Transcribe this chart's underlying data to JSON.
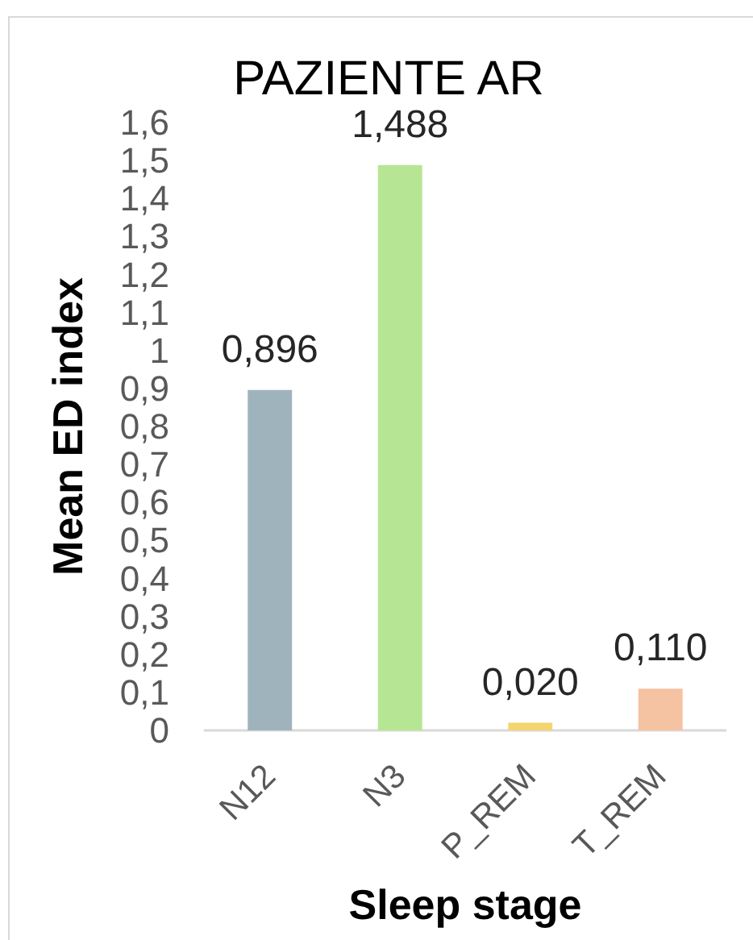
{
  "chart_data": {
    "type": "bar",
    "title": "PAZIENTE AR",
    "xlabel": "Sleep stage",
    "ylabel": "Mean ED index",
    "categories": [
      "N12",
      "N3",
      "P_REM",
      "T_REM"
    ],
    "values": [
      0.896,
      1.488,
      0.02,
      0.11
    ],
    "colors": [
      "#9fb3bd",
      "#b6e693",
      "#f2d56f",
      "#f5c2a2"
    ],
    "value_labels": [
      "0,896",
      "1,488",
      "0,020",
      "0,110"
    ],
    "ylim": [
      0,
      1.6
    ],
    "yticks": [
      0,
      {
        "value": 0.1,
        "label": "0,1"
      },
      {
        "value": 0.2,
        "label": "0,2"
      },
      {
        "value": 0.3,
        "label": "0,3"
      },
      {
        "value": 0.4,
        "label": "0,4"
      },
      {
        "value": 0.5,
        "label": "0,5"
      },
      {
        "value": 0.6,
        "label": "0,6"
      },
      {
        "value": 0.7,
        "label": "0,7"
      },
      {
        "value": 0.8,
        "label": "0,8"
      },
      {
        "value": 0.9,
        "label": "0,9"
      },
      1,
      {
        "value": 1.1,
        "label": "1,1"
      },
      {
        "value": 1.2,
        "label": "1,2"
      },
      {
        "value": 1.3,
        "label": "1,3"
      },
      {
        "value": 1.4,
        "label": "1,4"
      },
      {
        "value": 1.5,
        "label": "1,5"
      },
      {
        "value": 1.6,
        "label": "1,6"
      }
    ]
  }
}
